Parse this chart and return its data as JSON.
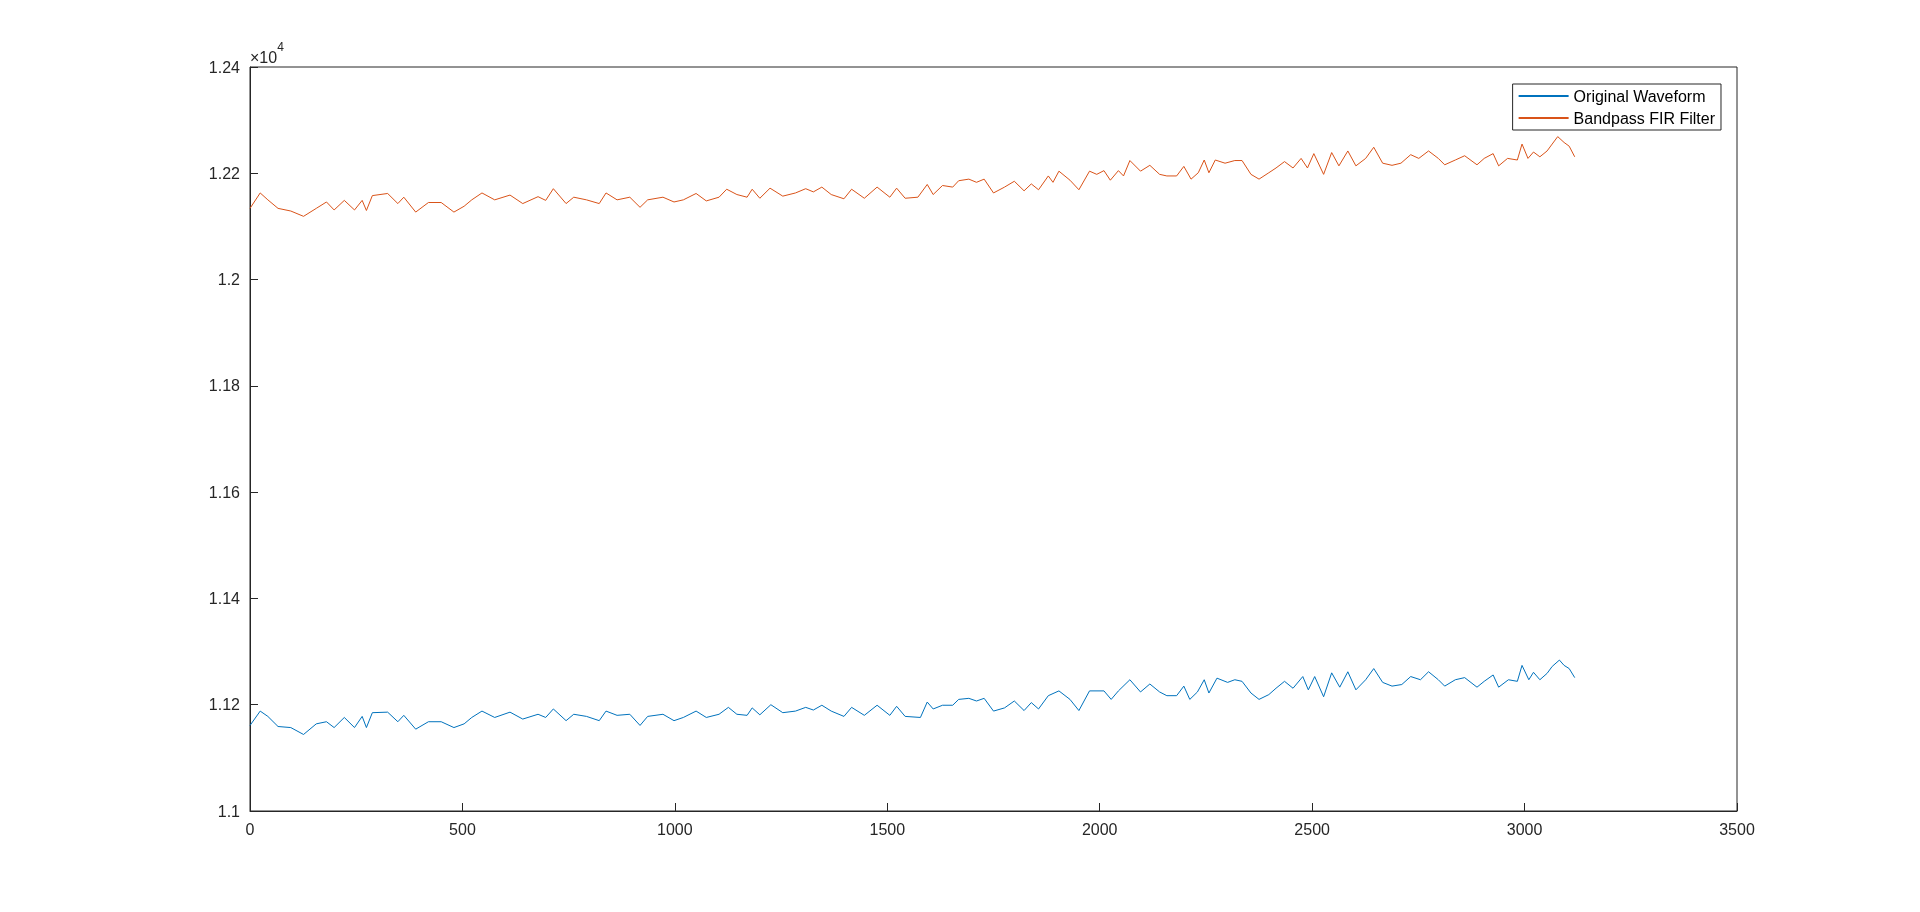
{
  "chart_data": {
    "type": "line",
    "annotations": [
      "×10$^{4}$"
    ],
    "legend": "top right",
    "grid": false,
    "marker": "none",
    "line_style": "solid",
    "xlim": [
      0,
      3500
    ],
    "xticks": [
      0,
      500,
      1000,
      1500,
      2000,
      2500,
      3000,
      3500
    ],
    "ylim": [
      1.1,
      1.24
    ],
    "yticks": [
      1.1,
      1.12,
      1.14,
      1.16,
      1.18,
      1.2,
      1.22,
      1.24
    ],
    "series": [
      {
        "name": "Original Waveform",
        "color": "#0072bd",
        "x": [
          0,
          24,
          42,
          66,
          96,
          126,
          156,
          180,
          198,
          222,
          246,
          264,
          274,
          288,
          324,
          348,
          362,
          390,
          420,
          450,
          480,
          504,
          522,
          546,
          576,
          612,
          642,
          678,
          696,
          714,
          744,
          762,
          792,
          822,
          838,
          864,
          894,
          918,
          936,
          972,
          998,
          1020,
          1050,
          1074,
          1104,
          1126,
          1146,
          1170,
          1182,
          1200,
          1226,
          1254,
          1284,
          1308,
          1326,
          1346,
          1368,
          1398,
          1416,
          1446,
          1476,
          1506,
          1522,
          1542,
          1578,
          1594,
          1608,
          1630,
          1654,
          1668,
          1692,
          1710,
          1728,
          1750,
          1776,
          1799,
          1822,
          1839,
          1856,
          1879,
          1904,
          1930,
          1951,
          1976,
          2010,
          2027,
          2044,
          2071,
          2096,
          2118,
          2141,
          2158,
          2181,
          2198,
          2212,
          2230,
          2246,
          2257,
          2276,
          2301,
          2318,
          2335,
          2356,
          2375,
          2398,
          2415,
          2435,
          2455,
          2478,
          2491,
          2506,
          2527,
          2546,
          2565,
          2584,
          2603,
          2626,
          2645,
          2666,
          2688,
          2711,
          2732,
          2755,
          2774,
          2797,
          2812,
          2837,
          2859,
          2888,
          2905,
          2926,
          2939,
          2962,
          2983,
          2994,
          3010,
          3021,
          3036,
          3053,
          3065,
          3082,
          3093,
          3105,
          3118
        ],
        "values": [
          1.1161,
          1.1188,
          1.1178,
          1.1159,
          1.1157,
          1.1144,
          1.1164,
          1.1168,
          1.1157,
          1.1176,
          1.1157,
          1.1178,
          1.1157,
          1.1185,
          1.1186,
          1.1168,
          1.118,
          1.1154,
          1.1168,
          1.1168,
          1.1157,
          1.1164,
          1.1176,
          1.1188,
          1.1176,
          1.1186,
          1.1173,
          1.1182,
          1.1176,
          1.1192,
          1.117,
          1.1182,
          1.1178,
          1.117,
          1.1188,
          1.118,
          1.1182,
          1.1161,
          1.1178,
          1.1182,
          1.117,
          1.1176,
          1.1188,
          1.1176,
          1.1182,
          1.1195,
          1.1182,
          1.118,
          1.1194,
          1.1181,
          1.12,
          1.1185,
          1.1188,
          1.1195,
          1.119,
          1.1199,
          1.1188,
          1.1178,
          1.1195,
          1.118,
          1.1199,
          1.118,
          1.1197,
          1.1178,
          1.1176,
          1.1205,
          1.1192,
          1.1199,
          1.1199,
          1.121,
          1.1212,
          1.1207,
          1.1212,
          1.1188,
          1.1194,
          1.1207,
          1.1189,
          1.1204,
          1.1192,
          1.1217,
          1.1226,
          1.121,
          1.1189,
          1.1226,
          1.1226,
          1.121,
          1.1226,
          1.1247,
          1.1224,
          1.1239,
          1.1224,
          1.1217,
          1.1217,
          1.1235,
          1.121,
          1.1224,
          1.1247,
          1.1222,
          1.125,
          1.1242,
          1.1247,
          1.1244,
          1.1222,
          1.121,
          1.1219,
          1.1231,
          1.1244,
          1.1231,
          1.1253,
          1.1228,
          1.1253,
          1.1215,
          1.126,
          1.1233,
          1.1262,
          1.1228,
          1.1247,
          1.1268,
          1.1242,
          1.1235,
          1.1238,
          1.1253,
          1.1247,
          1.1262,
          1.1247,
          1.1235,
          1.1247,
          1.1251,
          1.1233,
          1.1244,
          1.1256,
          1.1233,
          1.1247,
          1.1244,
          1.1274,
          1.1247,
          1.1261,
          1.1247,
          1.1259,
          1.1272,
          1.1284,
          1.1274,
          1.1268,
          1.1251
        ]
      },
      {
        "name": "Bandpass FIR Filter",
        "color": "#d95319",
        "x": [
          0,
          24,
          42,
          66,
          96,
          126,
          156,
          180,
          198,
          222,
          246,
          264,
          274,
          288,
          324,
          348,
          362,
          390,
          420,
          450,
          480,
          504,
          522,
          546,
          576,
          612,
          642,
          678,
          696,
          714,
          744,
          762,
          792,
          822,
          838,
          864,
          894,
          918,
          936,
          972,
          998,
          1020,
          1050,
          1074,
          1104,
          1122,
          1146,
          1170,
          1182,
          1200,
          1224,
          1254,
          1284,
          1308,
          1326,
          1346,
          1368,
          1398,
          1416,
          1446,
          1476,
          1506,
          1522,
          1542,
          1572,
          1594,
          1608,
          1630,
          1654,
          1668,
          1692,
          1710,
          1728,
          1750,
          1776,
          1799,
          1822,
          1839,
          1856,
          1879,
          1890,
          1904,
          1930,
          1951,
          1976,
          1993,
          2010,
          2025,
          2044,
          2056,
          2071,
          2096,
          2118,
          2141,
          2158,
          2181,
          2198,
          2215,
          2232,
          2246,
          2257,
          2272,
          2295,
          2318,
          2335,
          2356,
          2375,
          2398,
          2415,
          2435,
          2455,
          2474,
          2489,
          2504,
          2527,
          2546,
          2563,
          2584,
          2603,
          2626,
          2645,
          2666,
          2688,
          2709,
          2732,
          2751,
          2774,
          2797,
          2812,
          2837,
          2859,
          2888,
          2905,
          2926,
          2939,
          2960,
          2983,
          2994,
          3008,
          3021,
          3036,
          3053,
          3065,
          3078,
          3093,
          3105,
          3118
        ],
        "values": [
          1.2134,
          1.2163,
          1.215,
          1.2134,
          1.2129,
          1.2119,
          1.2134,
          1.2146,
          1.2131,
          1.2149,
          1.2131,
          1.2149,
          1.213,
          1.2158,
          1.2162,
          1.2143,
          1.2155,
          1.2127,
          1.2145,
          1.2145,
          1.2127,
          1.2138,
          1.215,
          1.2163,
          1.215,
          1.2159,
          1.2143,
          1.2156,
          1.2149,
          1.2171,
          1.2143,
          1.2155,
          1.215,
          1.2143,
          1.2163,
          1.215,
          1.2155,
          1.2136,
          1.215,
          1.2155,
          1.2146,
          1.215,
          1.2162,
          1.2148,
          1.2155,
          1.217,
          1.216,
          1.2155,
          1.217,
          1.2153,
          1.2172,
          1.2157,
          1.2163,
          1.2171,
          1.2165,
          1.2174,
          1.216,
          1.2152,
          1.217,
          1.2153,
          1.2174,
          1.2155,
          1.2172,
          1.2153,
          1.2155,
          1.2179,
          1.216,
          1.2177,
          1.2174,
          1.2186,
          1.2189,
          1.2183,
          1.2189,
          1.2163,
          1.2174,
          1.2185,
          1.2167,
          1.218,
          1.2169,
          1.2195,
          1.2183,
          1.2204,
          1.2187,
          1.2169,
          1.2204,
          1.2198,
          1.2205,
          1.2187,
          1.2205,
          1.2195,
          1.2224,
          1.2204,
          1.2215,
          1.2198,
          1.2195,
          1.2195,
          1.2213,
          1.2189,
          1.2201,
          1.2225,
          1.2201,
          1.2225,
          1.2219,
          1.2224,
          1.2224,
          1.2198,
          1.2189,
          1.2201,
          1.221,
          1.2222,
          1.221,
          1.2228,
          1.221,
          1.2237,
          1.2198,
          1.2239,
          1.2214,
          1.2242,
          1.2214,
          1.2228,
          1.2249,
          1.2219,
          1.2215,
          1.2219,
          1.2235,
          1.2228,
          1.2242,
          1.2228,
          1.2216,
          1.2225,
          1.2233,
          1.2216,
          1.2228,
          1.2237,
          1.2214,
          1.2228,
          1.2225,
          1.2255,
          1.2228,
          1.224,
          1.2231,
          1.2242,
          1.2255,
          1.2269,
          1.2258,
          1.2251,
          1.2231
        ]
      }
    ]
  }
}
